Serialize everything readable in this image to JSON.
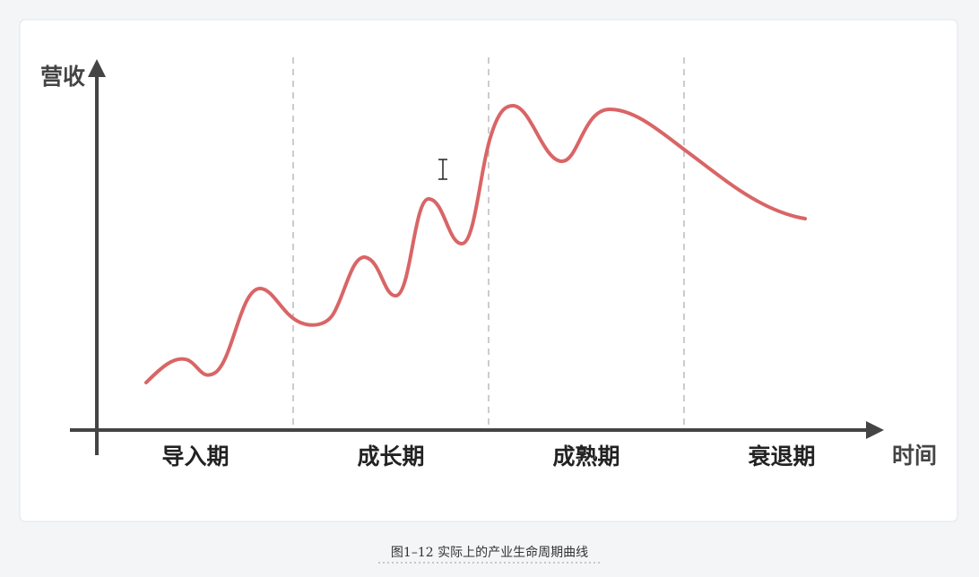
{
  "diagram": {
    "y_axis_label": "营收",
    "x_axis_label": "时间",
    "stages": [
      "导入期",
      "成长期",
      "成熟期",
      "衰退期"
    ],
    "caption": "图1–12 实际上的产业生命周期曲线"
  }
}
